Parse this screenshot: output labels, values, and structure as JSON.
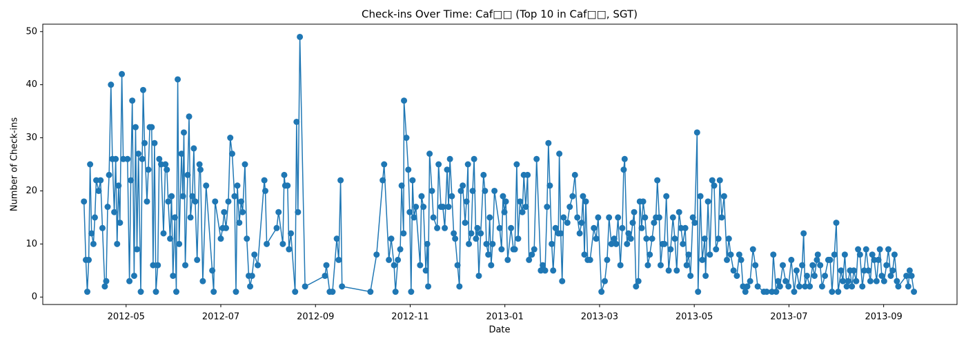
{
  "chart_data": {
    "type": "line",
    "title": "Check-ins Over Time: Caf□□ (Top 10 in Caf□□, SGT)",
    "x_label": "Date",
    "y_label": "Number of Check-ins",
    "color": "#1f77b4",
    "grid": false,
    "xlim": [
      2.24,
      21.55
    ],
    "ylim": [
      -1.4,
      51.4
    ],
    "xticks": [
      {
        "value": 4,
        "label": "2012-05"
      },
      {
        "value": 6,
        "label": "2012-07"
      },
      {
        "value": 8,
        "label": "2012-09"
      },
      {
        "value": 10,
        "label": "2012-11"
      },
      {
        "value": 12,
        "label": "2013-01"
      },
      {
        "value": 14,
        "label": "2013-03"
      },
      {
        "value": 16,
        "label": "2013-05"
      },
      {
        "value": 18,
        "label": "2013-07"
      },
      {
        "value": 20,
        "label": "2013-09"
      }
    ],
    "yticks": [
      0,
      10,
      20,
      30,
      40,
      50
    ],
    "x": [
      3.11,
      3.15,
      3.18,
      3.21,
      3.24,
      3.27,
      3.31,
      3.34,
      3.37,
      3.42,
      3.46,
      3.5,
      3.55,
      3.58,
      3.61,
      3.64,
      3.68,
      3.71,
      3.75,
      3.78,
      3.81,
      3.84,
      3.87,
      3.91,
      3.94,
      4.03,
      4.07,
      4.1,
      4.13,
      4.17,
      4.2,
      4.23,
      4.26,
      4.31,
      4.34,
      4.36,
      4.39,
      4.44,
      4.47,
      4.5,
      4.54,
      4.57,
      4.6,
      4.63,
      4.67,
      4.7,
      4.74,
      4.79,
      4.83,
      4.86,
      4.89,
      4.93,
      4.96,
      4.99,
      5.03,
      5.06,
      5.09,
      5.12,
      5.17,
      5.2,
      5.22,
      5.25,
      5.3,
      5.33,
      5.36,
      5.4,
      5.43,
      5.46,
      5.5,
      5.55,
      5.57,
      5.62,
      5.69,
      5.82,
      5.85,
      5.88,
      6.0,
      6.04,
      6.07,
      6.11,
      6.16,
      6.2,
      6.24,
      6.29,
      6.32,
      6.35,
      6.39,
      6.43,
      6.46,
      6.51,
      6.55,
      6.59,
      6.62,
      6.66,
      6.71,
      6.78,
      6.92,
      6.94,
      6.97,
      7.18,
      7.22,
      7.31,
      7.34,
      7.36,
      7.41,
      7.44,
      7.48,
      7.57,
      7.6,
      7.63,
      7.67,
      7.78,
      8.2,
      8.23,
      8.3,
      8.36,
      8.45,
      8.49,
      8.53,
      8.56,
      9.16,
      9.29,
      9.42,
      9.45,
      9.55,
      9.6,
      9.66,
      9.69,
      9.74,
      9.79,
      9.82,
      9.86,
      9.87,
      9.92,
      9.96,
      9.99,
      10.02,
      10.05,
      10.08,
      10.12,
      10.21,
      10.24,
      10.28,
      10.33,
      10.36,
      10.38,
      10.41,
      10.46,
      10.49,
      10.57,
      10.6,
      10.65,
      10.69,
      10.73,
      10.78,
      10.81,
      10.84,
      10.88,
      10.92,
      10.95,
      11.0,
      11.04,
      11.07,
      11.11,
      11.16,
      11.19,
      11.22,
      11.24,
      11.29,
      11.32,
      11.35,
      11.39,
      11.42,
      11.45,
      11.49,
      11.55,
      11.58,
      11.61,
      11.65,
      11.68,
      11.71,
      11.74,
      11.78,
      11.89,
      11.93,
      11.96,
      11.99,
      12.02,
      12.06,
      12.13,
      12.18,
      12.21,
      12.25,
      12.28,
      12.32,
      12.37,
      12.4,
      12.44,
      12.48,
      12.51,
      12.57,
      12.62,
      12.67,
      12.76,
      12.8,
      12.85,
      12.89,
      12.92,
      12.95,
      12.99,
      13.02,
      13.07,
      13.13,
      13.15,
      13.18,
      13.21,
      13.24,
      13.32,
      13.37,
      13.43,
      13.48,
      13.53,
      13.58,
      13.62,
      13.65,
      13.68,
      13.71,
      13.75,
      13.8,
      13.88,
      13.93,
      13.97,
      14.04,
      14.11,
      14.16,
      14.2,
      14.25,
      14.31,
      14.35,
      14.39,
      14.44,
      14.48,
      14.51,
      14.53,
      14.58,
      14.61,
      14.66,
      14.7,
      14.73,
      14.77,
      14.82,
      14.85,
      14.89,
      14.92,
      14.96,
      14.99,
      15.02,
      15.06,
      15.11,
      15.15,
      15.19,
      15.22,
      15.26,
      15.29,
      15.33,
      15.37,
      15.41,
      15.46,
      15.5,
      15.55,
      15.59,
      15.63,
      15.68,
      15.72,
      15.76,
      15.81,
      15.84,
      15.88,
      15.92,
      15.97,
      16.01,
      16.06,
      16.08,
      16.13,
      16.17,
      16.22,
      16.24,
      16.29,
      16.33,
      16.38,
      16.42,
      16.46,
      16.51,
      16.54,
      16.58,
      16.63,
      16.69,
      16.73,
      16.77,
      16.83,
      16.9,
      16.95,
      16.99,
      17.03,
      17.08,
      17.12,
      17.18,
      17.24,
      17.29,
      17.34,
      17.47,
      17.53,
      17.64,
      17.67,
      17.73,
      17.77,
      17.81,
      17.87,
      17.93,
      17.99,
      18.05,
      18.11,
      18.16,
      18.22,
      18.28,
      18.31,
      18.34,
      18.38,
      18.44,
      18.5,
      18.54,
      18.59,
      18.61,
      18.66,
      18.7,
      18.76,
      18.83,
      18.87,
      18.91,
      18.96,
      19.0,
      19.04,
      19.1,
      19.14,
      19.18,
      19.22,
      19.25,
      19.29,
      19.33,
      19.37,
      19.42,
      19.46,
      19.5,
      19.55,
      19.59,
      19.63,
      19.68,
      19.72,
      19.76,
      19.8,
      19.85,
      19.89,
      19.92,
      19.96,
      20.01,
      20.06,
      20.1,
      20.15,
      20.19,
      20.23,
      20.28,
      20.31,
      20.48,
      20.52,
      20.55,
      20.59,
      20.64
    ],
    "values": [
      18,
      7,
      1,
      7,
      25,
      12,
      10,
      15,
      22,
      20,
      22,
      13,
      2,
      3,
      17,
      23,
      40,
      26,
      16,
      26,
      10,
      21,
      14,
      42,
      26,
      26,
      3,
      22,
      37,
      4,
      32,
      9,
      27,
      1,
      26,
      39,
      29,
      18,
      24,
      32,
      32,
      6,
      29,
      1,
      6,
      26,
      25,
      12,
      25,
      24,
      18,
      11,
      19,
      4,
      15,
      1,
      41,
      10,
      27,
      19,
      31,
      6,
      23,
      34,
      15,
      19,
      28,
      18,
      7,
      25,
      24,
      3,
      21,
      5,
      1,
      18,
      11,
      13,
      16,
      13,
      18,
      30,
      27,
      19,
      1,
      21,
      14,
      18,
      16,
      25,
      11,
      4,
      2,
      4,
      8,
      6,
      22,
      20,
      10,
      13,
      16,
      10,
      23,
      21,
      21,
      9,
      12,
      1,
      33,
      16,
      49,
      2,
      4,
      6,
      1,
      1,
      11,
      7,
      22,
      2,
      1,
      8,
      22,
      25,
      7,
      11,
      6,
      1,
      7,
      9,
      21,
      12,
      37,
      30,
      24,
      16,
      1,
      22,
      15,
      17,
      6,
      19,
      17,
      5,
      10,
      2,
      27,
      20,
      15,
      13,
      25,
      17,
      17,
      13,
      24,
      17,
      26,
      19,
      12,
      11,
      6,
      2,
      20,
      21,
      14,
      18,
      25,
      10,
      12,
      20,
      26,
      11,
      13,
      4,
      12,
      23,
      20,
      10,
      8,
      15,
      6,
      10,
      20,
      13,
      9,
      19,
      16,
      18,
      7,
      13,
      9,
      9,
      25,
      11,
      18,
      16,
      23,
      17,
      23,
      7,
      8,
      9,
      26,
      5,
      6,
      5,
      17,
      29,
      21,
      10,
      5,
      13,
      12,
      27,
      12,
      3,
      15,
      14,
      17,
      19,
      23,
      15,
      12,
      14,
      19,
      8,
      18,
      7,
      7,
      13,
      11,
      15,
      1,
      3,
      7,
      15,
      10,
      11,
      10,
      15,
      6,
      13,
      24,
      26,
      10,
      12,
      11,
      14,
      16,
      2,
      3,
      18,
      13,
      18,
      15,
      11,
      6,
      8,
      11,
      14,
      15,
      22,
      15,
      6,
      10,
      10,
      19,
      5,
      9,
      15,
      11,
      5,
      16,
      13,
      10,
      13,
      6,
      8,
      4,
      15,
      14,
      31,
      1,
      19,
      7,
      11,
      4,
      18,
      8,
      22,
      21,
      9,
      11,
      22,
      15,
      19,
      7,
      11,
      8,
      5,
      4,
      8,
      7,
      2,
      1,
      2,
      3,
      9,
      6,
      2,
      1,
      1,
      1,
      8,
      1,
      3,
      2,
      6,
      3,
      2,
      7,
      1,
      5,
      2,
      6,
      12,
      2,
      4,
      2,
      6,
      4,
      7,
      8,
      6,
      2,
      4,
      7,
      7,
      1,
      8,
      14,
      1,
      5,
      3,
      8,
      2,
      3,
      5,
      2,
      5,
      3,
      9,
      8,
      2,
      5,
      9,
      5,
      3,
      8,
      7,
      3,
      7,
      9,
      4,
      3,
      6,
      9,
      4,
      5,
      8,
      3,
      2,
      4,
      2,
      5,
      4,
      1
    ]
  }
}
